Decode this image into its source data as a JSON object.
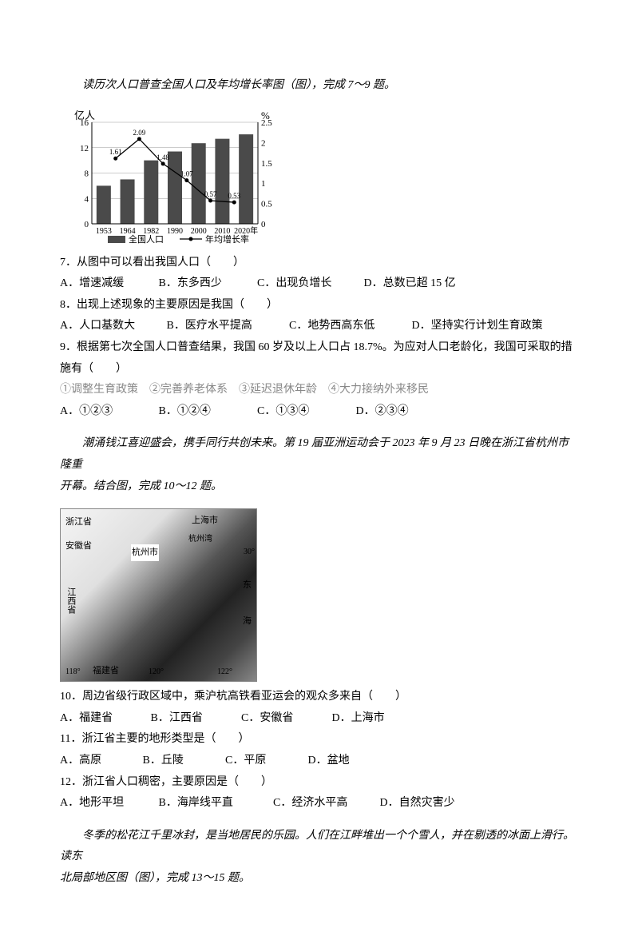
{
  "intro1": "读历次人口普查全国人口及年均增长率图（图），完成 7～9 题。",
  "chart": {
    "y1_label": "亿人",
    "y2_label": "%",
    "y1_ticks": [
      "0",
      "4",
      "8",
      "12",
      "16"
    ],
    "y2_ticks": [
      "0",
      "0.5",
      "1",
      "1.5",
      "2",
      "2.5"
    ],
    "x_labels": [
      "1953",
      "1964",
      "1982",
      "1990",
      "2000",
      "2010",
      "2020年"
    ],
    "bars": [
      6,
      7,
      10,
      11.4,
      12.7,
      13.4,
      14.1
    ],
    "line": [
      1.61,
      2.09,
      1.48,
      1.07,
      0.57,
      0.53
    ],
    "line_labels": [
      "1.61",
      "2.09",
      "1.48",
      "1.07",
      "0.57",
      "0.53"
    ],
    "legend_bar": "全国人口",
    "legend_line": "年均增长率",
    "bar_color": "#4a4a4a",
    "line_color": "#000000",
    "grid_color": "#999999"
  },
  "q7": {
    "stem": "7．从图中可以看出我国人口（　　）",
    "A": "A．增速减缓",
    "B": "B．东多西少",
    "C": "C．出现负增长",
    "D": "D．总数已超 15 亿"
  },
  "q8": {
    "stem": "8．出现上述现象的主要原因是我国（　　）",
    "A": "A．人口基数大",
    "B": "B．医疗水平提高",
    "C": "C．地势西高东低",
    "D": "D．坚持实行计划生育政策"
  },
  "q9": {
    "stem": "9．根据第七次全国人口普查结果，我国 60 岁及以上人口占 18.7%。为应对人口老龄化，我国可采取的措施有（　　）",
    "subs": "①调整生育政策　②完善养老体系　③延迟退休年龄　④大力接纳外来移民",
    "A": "A．①②③",
    "B": "B．①②④",
    "C": "C．①③④",
    "D": "D．②③④"
  },
  "intro2a": "潮涌钱江喜迎盛会，携手同行共创未来。第 19 届亚洲运动会于 2023 年 9 月 23 日晚在浙江省杭州市隆重",
  "intro2b": "开幕。结合图，完成 10～12 题。",
  "map": {
    "labels": {
      "zhejiang": "浙江省",
      "anhui": "安徽省",
      "jiangxi": "江西省",
      "fujian": "福建省",
      "shanghai": "上海市",
      "hangzhou": "杭州市",
      "hzw": "杭州湾",
      "dong": "东",
      "hai": "海",
      "lat30": "30°",
      "lon118": "118°",
      "lon120": "120°",
      "lon122": "122°"
    }
  },
  "q10": {
    "stem": "10．周边省级行政区域中，乘沪杭高铁看亚运会的观众多来自（　　）",
    "A": "A．福建省",
    "B": "B．江西省",
    "C": "C．安徽省",
    "D": "D．上海市"
  },
  "q11": {
    "stem": "11．浙江省主要的地形类型是（　　）",
    "A": "A．高原",
    "B": "B．丘陵",
    "C": "C．平原",
    "D": "D．盆地"
  },
  "q12": {
    "stem": "12．浙江省人口稠密，主要原因是（　　）",
    "A": "A．地形平坦",
    "B": "B．海岸线平直",
    "C": "C．经济水平高",
    "D": "D．自然灾害少"
  },
  "intro3a": "冬季的松花江千里冰封，是当地居民的乐园。人们在江畔堆出一个个雪人，并在剔透的冰面上滑行。读东",
  "intro3b": "北局部地区图（图），完成 13～15 题。"
}
